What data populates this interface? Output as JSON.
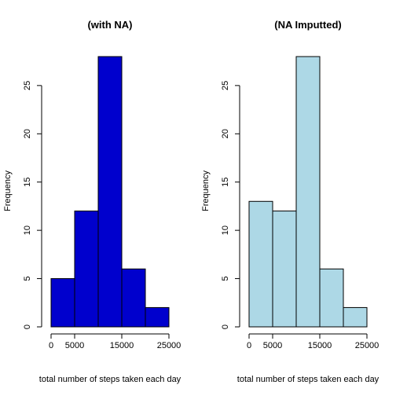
{
  "chart_data": [
    {
      "type": "bar",
      "title": "(with NA)",
      "xlabel": "total number of steps taken each day",
      "ylabel": "Frequency",
      "bins": [
        {
          "from": 0,
          "to": 5000,
          "count": 5
        },
        {
          "from": 5000,
          "to": 10000,
          "count": 12
        },
        {
          "from": 10000,
          "to": 15000,
          "count": 28
        },
        {
          "from": 15000,
          "to": 20000,
          "count": 6
        },
        {
          "from": 20000,
          "to": 25000,
          "count": 2
        }
      ],
      "xlim": [
        0,
        25000
      ],
      "ylim": [
        0,
        28
      ],
      "x_ticks": [
        0,
        5000,
        15000,
        25000
      ],
      "x_tick_labels": [
        "0",
        "5000",
        "15000",
        "25000"
      ],
      "y_ticks": [
        0,
        5,
        10,
        15,
        20,
        25
      ],
      "y_tick_labels": [
        "0",
        "5",
        "10",
        "15",
        "20",
        "25"
      ],
      "bar_color": "#0000CD",
      "grid": false
    },
    {
      "type": "bar",
      "title": "(NA Imputted)",
      "xlabel": "total number of steps taken each day",
      "ylabel": "Frequency",
      "bins": [
        {
          "from": 0,
          "to": 5000,
          "count": 13
        },
        {
          "from": 5000,
          "to": 10000,
          "count": 12
        },
        {
          "from": 10000,
          "to": 15000,
          "count": 28
        },
        {
          "from": 15000,
          "to": 20000,
          "count": 6
        },
        {
          "from": 20000,
          "to": 25000,
          "count": 2
        }
      ],
      "xlim": [
        0,
        25000
      ],
      "ylim": [
        0,
        28
      ],
      "x_ticks": [
        0,
        5000,
        15000,
        25000
      ],
      "x_tick_labels": [
        "0",
        "5000",
        "15000",
        "25000"
      ],
      "y_ticks": [
        0,
        5,
        10,
        15,
        20,
        25
      ],
      "y_tick_labels": [
        "0",
        "5",
        "10",
        "15",
        "20",
        "25"
      ],
      "bar_color": "#ADD8E6",
      "grid": false
    }
  ]
}
